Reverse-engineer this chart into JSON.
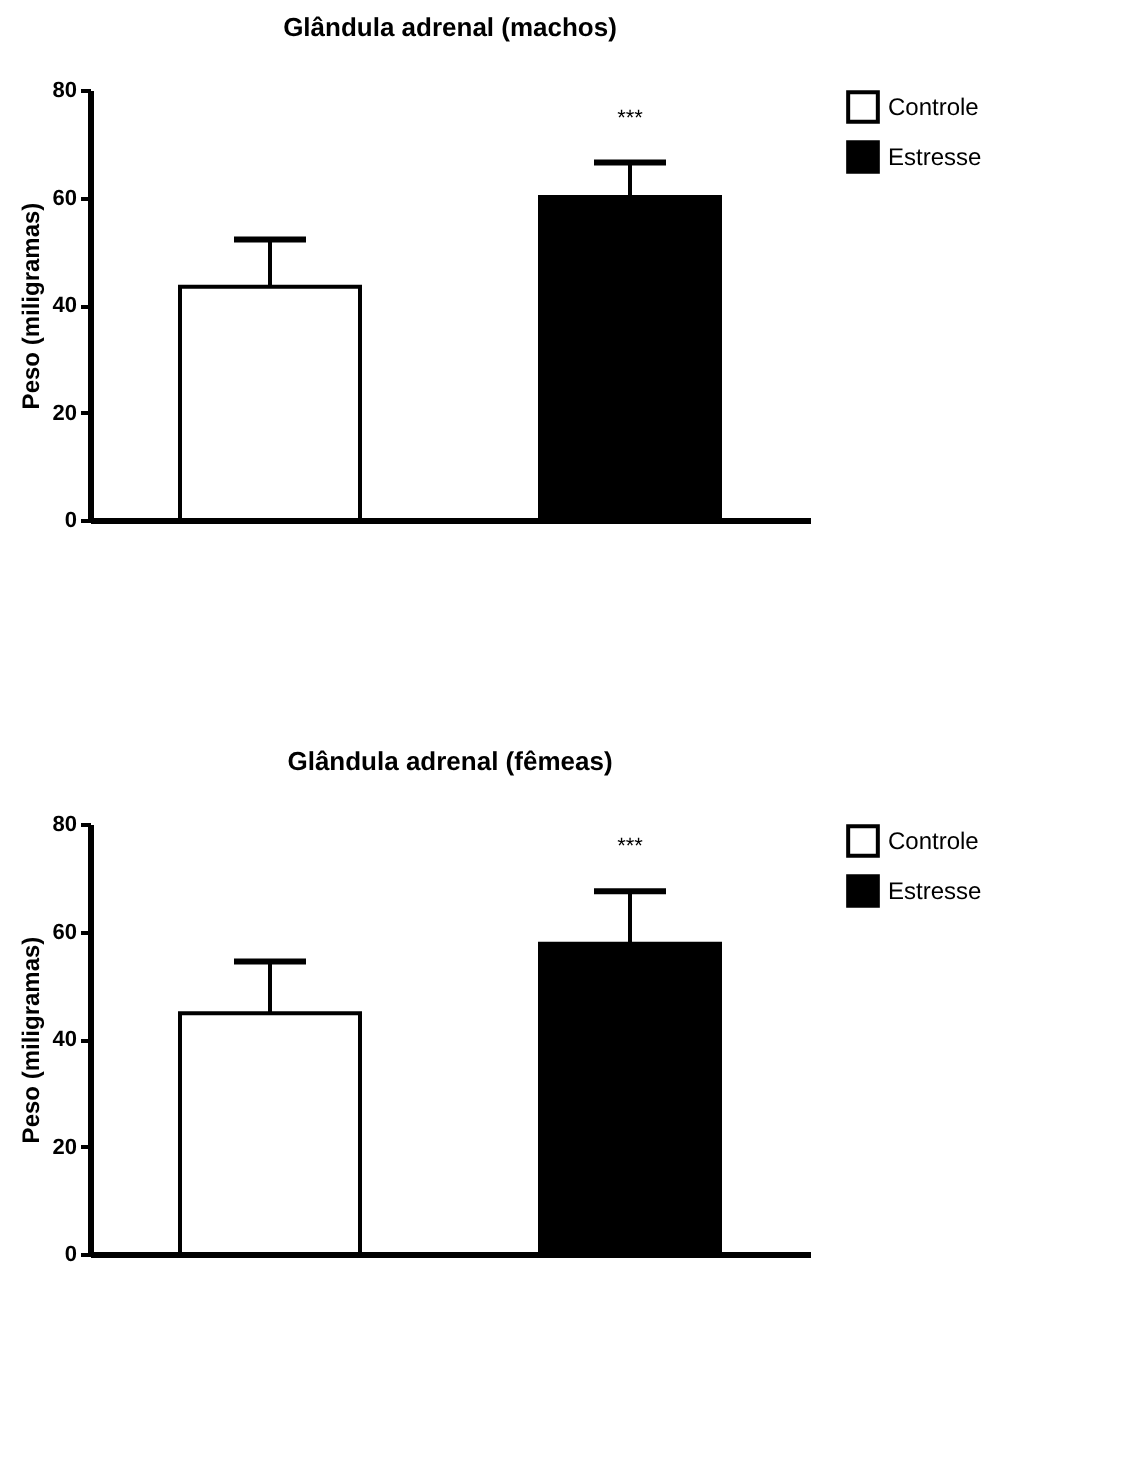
{
  "chart_data": [
    {
      "type": "bar",
      "title": "Glândula adrenal (machos)",
      "ylabel": "Peso (miligramas)",
      "categories": [
        null
      ],
      "series": [
        {
          "name": "Controle",
          "color": "#ffffff",
          "values": [
            43.4
          ],
          "errors": [
            [
              43.4,
              52.2
            ]
          ]
        },
        {
          "name": "Estresse",
          "color": "#000000",
          "values": [
            60.1
          ],
          "errors": [
            [
              60.1,
              66.5
            ]
          ]
        }
      ],
      "ylim": [
        0,
        80
      ],
      "yticks": [
        0,
        20,
        40,
        60,
        80
      ],
      "tick_labels": "y",
      "grid": false,
      "legend": "top right",
      "annotations": [
        "***"
      ]
    },
    {
      "type": "bar",
      "title": "Glândula adrenal (fêmeas)",
      "ylabel": "Peso (miligramas)",
      "categories": [
        null
      ],
      "series": [
        {
          "name": "Controle",
          "color": "#ffffff",
          "values": [
            44.8
          ],
          "errors": [
            [
              44.8,
              54.4
            ]
          ]
        },
        {
          "name": "Estresse",
          "color": "#000000",
          "values": [
            57.7
          ],
          "errors": [
            [
              57.7,
              67.5
            ]
          ]
        }
      ],
      "ylim": [
        0,
        80
      ],
      "yticks": [
        0,
        20,
        40,
        60,
        80
      ],
      "tick_labels": "y",
      "grid": false,
      "legend": "top right",
      "annotations": [
        "***"
      ]
    }
  ]
}
